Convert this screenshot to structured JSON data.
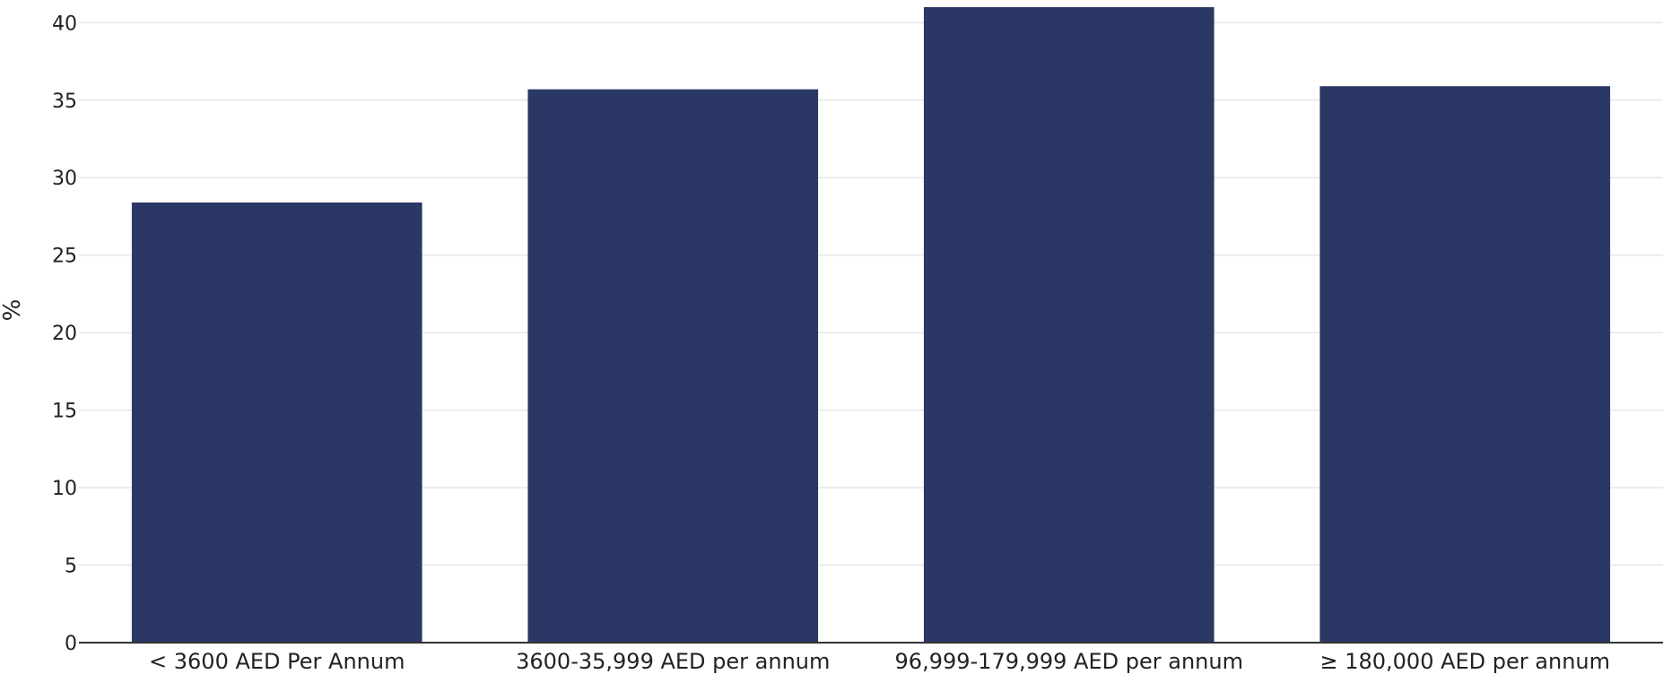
{
  "chart_data": {
    "type": "bar",
    "title": "",
    "xlabel": "",
    "ylabel": "%",
    "categories": [
      "< 3600 AED Per Annum",
      "3600-35,999 AED per annum",
      "96,999-179,999 AED per annum",
      "≥ 180,000 AED per annum"
    ],
    "values": [
      28.4,
      35.7,
      41.0,
      35.9
    ],
    "ylim": [
      0,
      41
    ],
    "yticks": [
      0,
      5,
      10,
      15,
      20,
      25,
      30,
      35,
      40
    ],
    "grid": true,
    "legend": "none",
    "bar_color": "#2b3765"
  }
}
